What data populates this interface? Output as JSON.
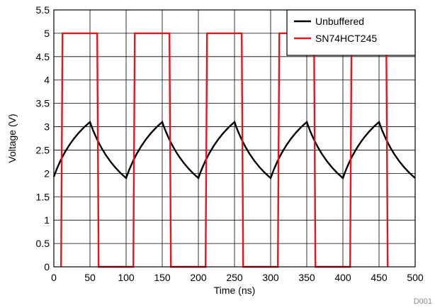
{
  "chart_data": {
    "type": "line",
    "xlabel": "Time (ns)",
    "ylabel": "Voltage (V)",
    "xlim": [
      0,
      500
    ],
    "ylim": [
      0,
      5.5
    ],
    "xticks": [
      0,
      50,
      100,
      150,
      200,
      250,
      300,
      350,
      400,
      450,
      500
    ],
    "yticks": [
      0,
      0.5,
      1,
      1.5,
      2,
      2.5,
      3,
      3.5,
      4,
      4.5,
      5,
      5.5
    ],
    "grid": true,
    "legend_position": "top-right",
    "figure_id": "D001",
    "series": [
      {
        "name": "Unbuffered",
        "color": "#000000",
        "x": [
          0,
          50,
          100,
          150,
          200,
          250,
          300,
          350,
          400,
          450,
          500
        ],
        "y": [
          1.93,
          3.1,
          1.9,
          3.1,
          1.9,
          3.1,
          1.9,
          3.1,
          1.9,
          3.1,
          1.9
        ]
      },
      {
        "name": "SN74HCT245",
        "color": "#e8141b",
        "x": [
          10,
          12,
          60,
          62,
          110,
          112,
          160,
          162,
          210,
          212,
          260,
          262,
          310,
          312,
          360,
          362,
          410,
          412,
          460,
          462
        ],
        "y": [
          0,
          5,
          5,
          0,
          0,
          5,
          5,
          0,
          0,
          5,
          5,
          0,
          0,
          5,
          5,
          0,
          0,
          5,
          5,
          0
        ]
      }
    ]
  }
}
